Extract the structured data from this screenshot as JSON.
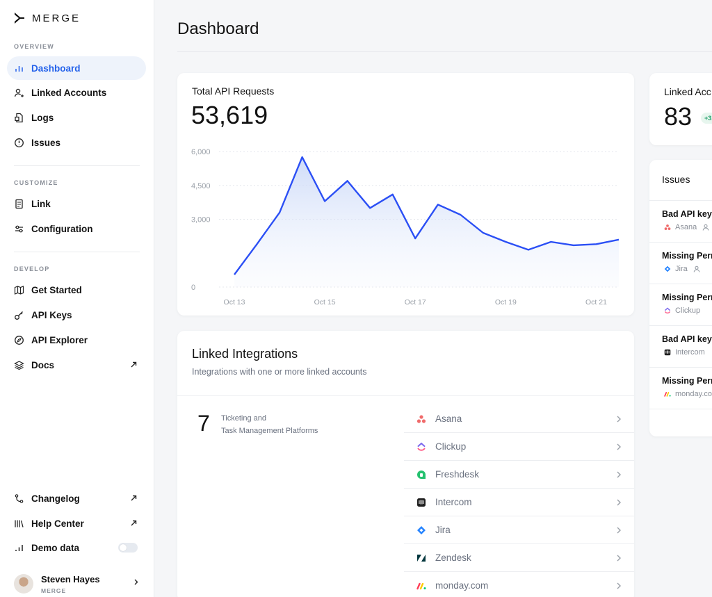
{
  "app": {
    "brand": "MERGE"
  },
  "sidebar": {
    "sections": {
      "overview": "OVERVIEW",
      "customize": "CUSTOMIZE",
      "develop": "DEVELOP"
    },
    "items": {
      "dashboard": "Dashboard",
      "linked_accounts": "Linked Accounts",
      "logs": "Logs",
      "issues": "Issues",
      "link": "Link",
      "configuration": "Configuration",
      "get_started": "Get Started",
      "api_keys": "API Keys",
      "api_explorer": "API Explorer",
      "docs": "Docs",
      "changelog": "Changelog",
      "help_center": "Help Center",
      "demo_data": "Demo data"
    },
    "user": {
      "name": "Steven Hayes",
      "org": "MERGE"
    }
  },
  "page": {
    "title": "Dashboard"
  },
  "api_requests": {
    "label": "Total API Requests",
    "total": "53,619"
  },
  "chart_data": {
    "type": "area",
    "title": "",
    "xlabel": "",
    "ylabel": "",
    "ylim": [
      0,
      6000
    ],
    "y_ticks": [
      "6,000",
      "4,500",
      "3,000",
      "0"
    ],
    "x_ticks": [
      "Oct 13",
      "Oct 15",
      "Oct 17",
      "Oct 19",
      "Oct 21"
    ],
    "x": [
      "Oct 13",
      "Oct 13.5",
      "Oct 14",
      "Oct 14.5",
      "Oct 15",
      "Oct 15.5",
      "Oct 16",
      "Oct 16.5",
      "Oct 17",
      "Oct 17.5",
      "Oct 18",
      "Oct 18.5",
      "Oct 19",
      "Oct 19.5",
      "Oct 20",
      "Oct 20.5",
      "Oct 21",
      "Oct 21.5"
    ],
    "series": [
      {
        "values": [
          550,
          1900,
          3300,
          5750,
          3800,
          4700,
          3500,
          4100,
          2150,
          3650,
          3200,
          2400,
          2000,
          1650,
          2000,
          1850,
          1900,
          2100
        ]
      }
    ],
    "grid": true,
    "line_color": "#2b4ff5"
  },
  "linked_integrations": {
    "title": "Linked Integrations",
    "subtitle": "Integrations with one or more linked accounts",
    "count": "7",
    "category_line1": "Ticketing and",
    "category_line2": "Task Management Platforms",
    "items": [
      {
        "name": "Asana",
        "icon": "asana-icon"
      },
      {
        "name": "Clickup",
        "icon": "clickup-icon"
      },
      {
        "name": "Freshdesk",
        "icon": "freshdesk-icon"
      },
      {
        "name": "Intercom",
        "icon": "intercom-icon"
      },
      {
        "name": "Jira",
        "icon": "jira-icon"
      },
      {
        "name": "Zendesk",
        "icon": "zendesk-icon"
      },
      {
        "name": "monday.com",
        "icon": "monday-icon"
      }
    ]
  },
  "linked_accounts_card": {
    "title": "Linked Acc",
    "count": "83",
    "badge": "+3."
  },
  "issues_card": {
    "title": "Issues",
    "items": [
      {
        "title": "Bad API key",
        "integration": "Asana"
      },
      {
        "title": "Missing Perr",
        "integration": "Jira"
      },
      {
        "title": "Missing Perr",
        "integration": "Clickup"
      },
      {
        "title": "Bad API key",
        "integration": "Intercom"
      },
      {
        "title": "Missing Perr",
        "integration": "monday.co"
      }
    ]
  }
}
